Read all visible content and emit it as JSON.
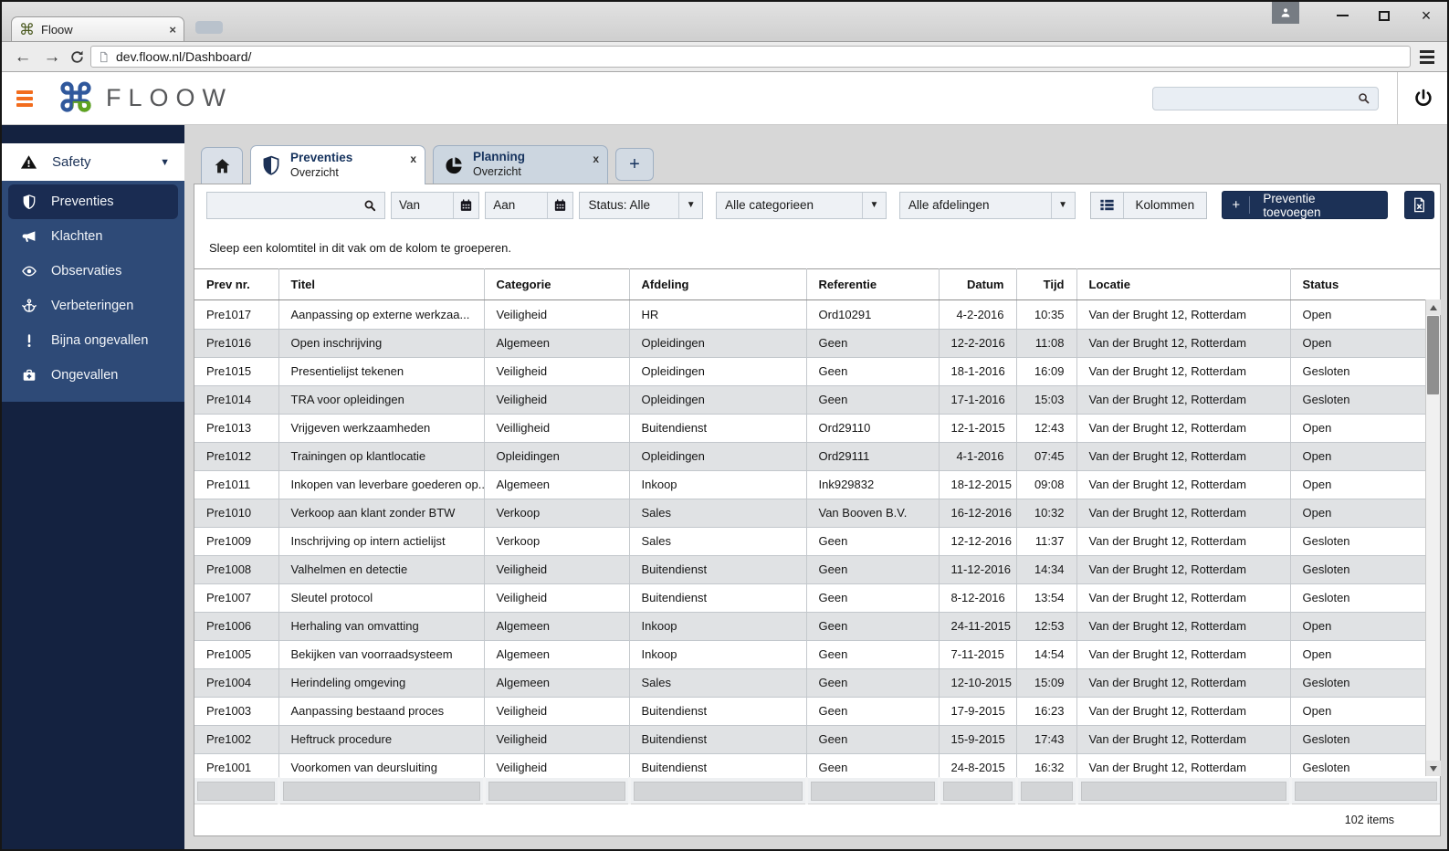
{
  "colors": {
    "accent_orange": "#f26c1d",
    "brand_navy": "#1c3156",
    "sidebar_blue": "#2e4a77",
    "sidebar_dark": "#142240",
    "logo_blue": "#30589c",
    "logo_green": "#5fa31e",
    "row_alt_gray": "#e0e2e4"
  },
  "glyphs": {
    "back": "←",
    "forward": "→",
    "caret_down": "▼",
    "tab_close": "x",
    "window_close": "×",
    "plus": "+",
    "logo_mark": "⌘"
  },
  "browser": {
    "tab_title": "Floow",
    "url": "dev.floow.nl/Dashboard/"
  },
  "app_header": {
    "logo_text": "FLOOW",
    "search_value": ""
  },
  "sidebar": {
    "group_label": "Safety",
    "items": [
      {
        "label": "Preventies",
        "active": true
      },
      {
        "label": "Klachten",
        "active": false
      },
      {
        "label": "Observaties",
        "active": false
      },
      {
        "label": "Verbeteringen",
        "active": false
      },
      {
        "label": "Bijna ongevallen",
        "active": false
      },
      {
        "label": "Ongevallen",
        "active": false
      }
    ]
  },
  "tabs": {
    "preventies": {
      "title": "Preventies",
      "subtitle": "Overzicht",
      "active": true
    },
    "planning": {
      "title": "Planning",
      "subtitle": "Overzicht",
      "active": false
    }
  },
  "filters": {
    "search_value": "",
    "van": "Van",
    "aan": "Aan",
    "status": "Status:  Alle",
    "categories": "Alle categorieen",
    "departments": "Alle afdelingen",
    "columns_button": "Kolommen",
    "add_button": "Preventie toevoegen"
  },
  "grouping_hint": "Sleep een kolomtitel in dit vak om de kolom te groeperen.",
  "table": {
    "columns": [
      "Prev nr.",
      "Titel",
      "Categorie",
      "Afdeling",
      "Referentie",
      "Datum",
      "Tijd",
      "Locatie",
      "Status"
    ],
    "right_aligned_columns": [
      5,
      6
    ],
    "rows": [
      [
        "Pre1017",
        "Aanpassing op externe werkzaa...",
        "Veiligheid",
        "HR",
        "Ord10291",
        "4-2-2016",
        "10:35",
        "Van der Brught 12, Rotterdam",
        "Open"
      ],
      [
        "Pre1016",
        "Open inschrijving",
        "Algemeen",
        "Opleidingen",
        "Geen",
        "12-2-2016",
        "11:08",
        "Van der Brught 12, Rotterdam",
        "Open"
      ],
      [
        "Pre1015",
        "Presentielijst tekenen",
        "Veiligheid",
        "Opleidingen",
        "Geen",
        "18-1-2016",
        "16:09",
        "Van der Brught 12, Rotterdam",
        "Gesloten"
      ],
      [
        "Pre1014",
        "TRA voor opleidingen",
        "Veiligheid",
        "Opleidingen",
        "Geen",
        "17-1-2016",
        "15:03",
        "Van der Brught 12, Rotterdam",
        "Gesloten"
      ],
      [
        "Pre1013",
        "Vrijgeven werkzaamheden",
        "Veilligheid",
        "Buitendienst",
        "Ord29110",
        "12-1-2015",
        "12:43",
        "Van der Brught 12, Rotterdam",
        "Open"
      ],
      [
        "Pre1012",
        "Trainingen op klantlocatie",
        "Opleidingen",
        "Opleidingen",
        "Ord29111",
        "4-1-2016",
        "07:45",
        "Van der Brught 12, Rotterdam",
        "Open"
      ],
      [
        "Pre1011",
        "Inkopen van leverbare goederen op...",
        "Algemeen",
        "Inkoop",
        "Ink929832",
        "18-12-2015",
        "09:08",
        "Van der Brught 12, Rotterdam",
        "Open"
      ],
      [
        "Pre1010",
        "Verkoop aan klant zonder BTW",
        "Verkoop",
        "Sales",
        "Van Booven B.V.",
        "16-12-2016",
        "10:32",
        "Van der Brught 12, Rotterdam",
        "Open"
      ],
      [
        "Pre1009",
        "Inschrijving op intern actielijst",
        "Verkoop",
        "Sales",
        "Geen",
        "12-12-2016",
        "11:37",
        "Van der Brught 12, Rotterdam",
        "Gesloten"
      ],
      [
        "Pre1008",
        "Valhelmen en detectie",
        "Veiligheid",
        "Buitendienst",
        "Geen",
        "11-12-2016",
        "14:34",
        "Van der Brught 12, Rotterdam",
        "Gesloten"
      ],
      [
        "Pre1007",
        "Sleutel protocol",
        "Veiligheid",
        "Buitendienst",
        "Geen",
        "8-12-2016",
        "13:54",
        "Van der Brught 12, Rotterdam",
        "Gesloten"
      ],
      [
        "Pre1006",
        "Herhaling van omvatting",
        "Algemeen",
        "Inkoop",
        "Geen",
        "24-11-2015",
        "12:53",
        "Van der Brught 12, Rotterdam",
        "Open"
      ],
      [
        "Pre1005",
        "Bekijken van voorraadsysteem",
        "Algemeen",
        "Inkoop",
        "Geen",
        "7-11-2015",
        "14:54",
        "Van der Brught 12, Rotterdam",
        "Open"
      ],
      [
        "Pre1004",
        "Herindeling omgeving",
        "Algemeen",
        "Sales",
        "Geen",
        "12-10-2015",
        "15:09",
        "Van der Brught 12, Rotterdam",
        "Gesloten"
      ],
      [
        "Pre1003",
        "Aanpassing bestaand proces",
        "Veiligheid",
        "Buitendienst",
        "Geen",
        "17-9-2015",
        "16:23",
        "Van der Brught 12, Rotterdam",
        "Open"
      ],
      [
        "Pre1002",
        "Heftruck procedure",
        "Veiligheid",
        "Buitendienst",
        "Geen",
        "15-9-2015",
        "17:43",
        "Van der Brught 12, Rotterdam",
        "Gesloten"
      ],
      [
        "Pre1001",
        "Voorkomen van deursluiting",
        "Veiligheid",
        "Buitendienst",
        "Geen",
        "24-8-2015",
        "16:32",
        "Van der Brught 12, Rotterdam",
        "Gesloten"
      ]
    ]
  },
  "footer": {
    "items_count": "102 items"
  }
}
